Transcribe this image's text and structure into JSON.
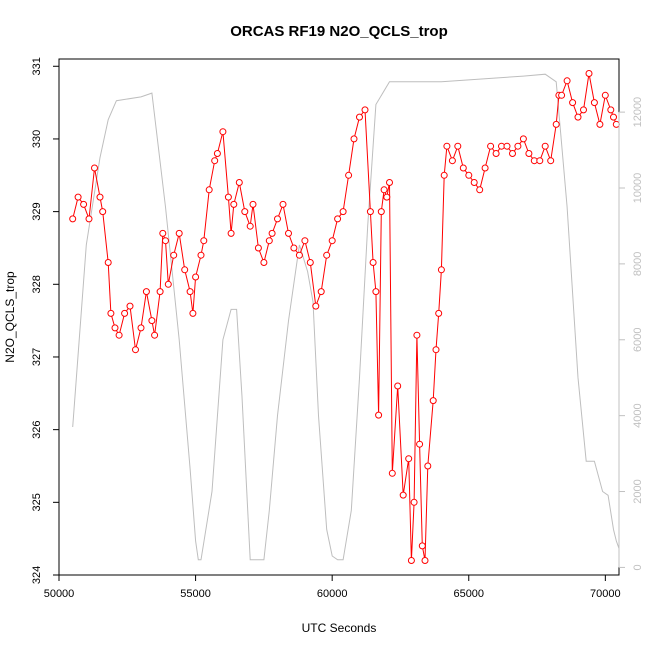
{
  "chart_data": {
    "type": "line",
    "title": "ORCAS RF19 N2O_QCLS_trop",
    "xlabel": "UTC Seconds",
    "ylabel": "N2O_QCLS_trop",
    "xlim": [
      50000,
      70500
    ],
    "ylim": [
      324,
      331.1
    ],
    "y2lim": [
      -200,
      13400
    ],
    "x_ticks": [
      "50000",
      "55000",
      "60000",
      "65000",
      "70000"
    ],
    "y_ticks": [
      "324",
      "325",
      "326",
      "327",
      "328",
      "329",
      "330",
      "331"
    ],
    "y2_ticks": [
      "0",
      "2000",
      "4000",
      "6000",
      "8000",
      "10000",
      "12000"
    ],
    "colors": {
      "n2o": "#ff0000",
      "altitude": "#bebebe",
      "axis": "#000000",
      "right_axis": "#c0c0c0"
    },
    "series": [
      {
        "role": "altitude-right-axis",
        "style": "line",
        "x": [
          50500,
          51000,
          51500,
          51800,
          52100,
          53000,
          53400,
          53900,
          54400,
          54800,
          55000,
          55100,
          55200,
          55600,
          56000,
          56300,
          56500,
          56700,
          57000,
          57400,
          57500,
          57700,
          58000,
          58400,
          58800,
          59100,
          59300,
          59500,
          59800,
          60000,
          60200,
          60400,
          60700,
          61000,
          61300,
          61600,
          62100,
          63000,
          64000,
          65000,
          66000,
          67000,
          67800,
          68200,
          68600,
          69000,
          69300,
          69600,
          69900,
          70100,
          70300,
          70400,
          70500
        ],
        "y": [
          3700,
          8500,
          10800,
          11800,
          12300,
          12400,
          12500,
          9500,
          6000,
          2600,
          700,
          200,
          200,
          2000,
          6000,
          6800,
          6800,
          4500,
          200,
          200,
          200,
          1500,
          4000,
          6500,
          8500,
          7800,
          7000,
          4000,
          1000,
          300,
          200,
          200,
          1500,
          5000,
          9000,
          12200,
          12800,
          12800,
          12800,
          12850,
          12900,
          12950,
          13000,
          12800,
          9500,
          5000,
          2800,
          2800,
          2000,
          1900,
          1000,
          700,
          500
        ]
      },
      {
        "role": "n2o-left-axis",
        "style": "line-points",
        "x": [
          50500,
          50700,
          50900,
          51100,
          51300,
          51500,
          51600,
          51800,
          51900,
          52050,
          52200,
          52400,
          52600,
          52800,
          53000,
          53200,
          53400,
          53500,
          53700,
          53800,
          53900,
          54000,
          54200,
          54400,
          54600,
          54800,
          54900,
          55000,
          55200,
          55300,
          55500,
          55700,
          55800,
          56000,
          56200,
          56300,
          56400,
          56600,
          56800,
          57000,
          57100,
          57300,
          57500,
          57700,
          57800,
          58000,
          58200,
          58400,
          58600,
          58800,
          59000,
          59200,
          59400,
          59600,
          59800,
          60000,
          60200,
          60400,
          60600,
          60800,
          61000,
          61200,
          61400,
          61500,
          61600,
          61700,
          61800,
          61900,
          62000,
          62100,
          62200,
          62400,
          62600,
          62800,
          62900,
          63000,
          63100,
          63200,
          63300,
          63400,
          63500,
          63700,
          63800,
          63900,
          64000,
          64100,
          64200,
          64400,
          64600,
          64800,
          65000,
          65200,
          65400,
          65600,
          65800,
          66000,
          66200,
          66400,
          66600,
          66800,
          67000,
          67200,
          67400,
          67600,
          67800,
          68000,
          68200,
          68300,
          68400,
          68600,
          68800,
          69000,
          69200,
          69400,
          69600,
          69800,
          70000,
          70200,
          70300,
          70400
        ],
        "y": [
          328.9,
          329.2,
          329.1,
          328.9,
          329.6,
          329.2,
          329.0,
          328.3,
          327.6,
          327.4,
          327.3,
          327.6,
          327.7,
          327.1,
          327.4,
          327.9,
          327.5,
          327.3,
          327.9,
          328.7,
          328.6,
          328.0,
          328.4,
          328.7,
          328.2,
          327.9,
          327.6,
          328.1,
          328.4,
          328.6,
          329.3,
          329.7,
          329.8,
          330.1,
          329.2,
          328.7,
          329.1,
          329.4,
          329.0,
          328.8,
          329.1,
          328.5,
          328.3,
          328.6,
          328.7,
          328.9,
          329.1,
          328.7,
          328.5,
          328.4,
          328.6,
          328.3,
          327.7,
          327.9,
          328.4,
          328.6,
          328.9,
          329.0,
          329.5,
          330.0,
          330.3,
          330.4,
          329.0,
          328.3,
          327.9,
          326.2,
          329.0,
          329.3,
          329.2,
          329.4,
          325.4,
          326.6,
          325.1,
          325.6,
          324.2,
          325.0,
          327.3,
          325.8,
          324.4,
          324.2,
          325.5,
          326.4,
          327.1,
          327.6,
          328.2,
          329.5,
          329.9,
          329.7,
          329.9,
          329.6,
          329.5,
          329.4,
          329.3,
          329.6,
          329.9,
          329.8,
          329.9,
          329.9,
          329.8,
          329.9,
          330.0,
          329.8,
          329.7,
          329.7,
          329.9,
          329.7,
          330.2,
          330.6,
          330.6,
          330.8,
          330.5,
          330.3,
          330.4,
          330.9,
          330.5,
          330.2,
          330.6,
          330.4,
          330.3,
          330.2
        ]
      }
    ]
  }
}
